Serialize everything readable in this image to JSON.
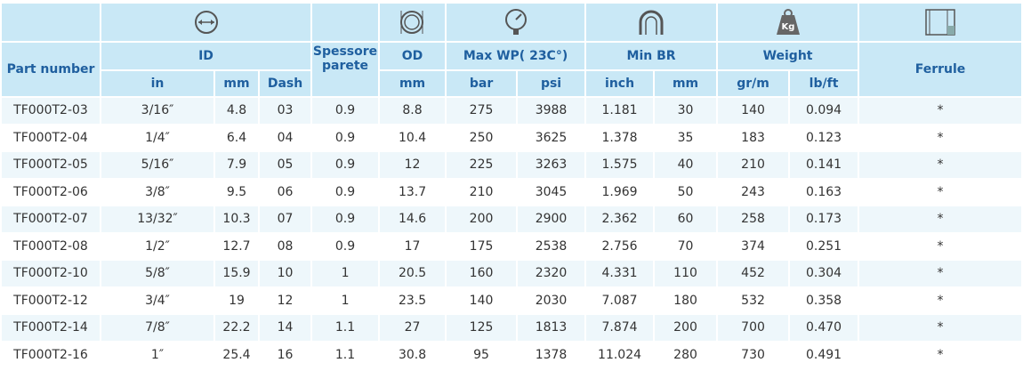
{
  "header": {
    "part_number": "Part number",
    "id": "ID",
    "spessore": "Spessore parete",
    "od": "OD",
    "max_wp": "Max WP( 23C°)",
    "min_br": "Min BR",
    "weight": "Weight",
    "ferrule": "Ferrule",
    "units": [
      "in",
      "mm",
      "Dash",
      "mm",
      "bar",
      "psi",
      "inch",
      "mm",
      "gr/m",
      "lb/ft"
    ]
  },
  "table": {
    "rows": [
      [
        "TF000T2-03",
        "3/16″",
        "4.8",
        "03",
        "0.9",
        "8.8",
        "275",
        "3988",
        "1.181",
        "30",
        "140",
        "0.094",
        "*"
      ],
      [
        "TF000T2-04",
        "1/4″",
        "6.4",
        "04",
        "0.9",
        "10.4",
        "250",
        "3625",
        "1.378",
        "35",
        "183",
        "0.123",
        "*"
      ],
      [
        "TF000T2-05",
        "5/16″",
        "7.9",
        "05",
        "0.9",
        "12",
        "225",
        "3263",
        "1.575",
        "40",
        "210",
        "0.141",
        "*"
      ],
      [
        "TF000T2-06",
        "3/8″",
        "9.5",
        "06",
        "0.9",
        "13.7",
        "210",
        "3045",
        "1.969",
        "50",
        "243",
        "0.163",
        "*"
      ],
      [
        "TF000T2-07",
        "13/32″",
        "10.3",
        "07",
        "0.9",
        "14.6",
        "200",
        "2900",
        "2.362",
        "60",
        "258",
        "0.173",
        "*"
      ],
      [
        "TF000T2-08",
        "1/2″",
        "12.7",
        "08",
        "0.9",
        "17",
        "175",
        "2538",
        "2.756",
        "70",
        "374",
        "0.251",
        "*"
      ],
      [
        "TF000T2-10",
        "5/8″",
        "15.9",
        "10",
        "1",
        "20.5",
        "160",
        "2320",
        "4.331",
        "110",
        "452",
        "0.304",
        "*"
      ],
      [
        "TF000T2-12",
        "3/4″",
        "19",
        "12",
        "1",
        "23.5",
        "140",
        "2030",
        "7.087",
        "180",
        "532",
        "0.358",
        "*"
      ],
      [
        "TF000T2-14",
        "7/8″",
        "22.2",
        "14",
        "1.1",
        "27",
        "125",
        "1813",
        "7.874",
        "200",
        "700",
        "0.470",
        "*"
      ],
      [
        "TF000T2-16",
        "1″",
        "25.4",
        "16",
        "1.1",
        "30.8",
        "95",
        "1378",
        "11.024",
        "280",
        "730",
        "0.491",
        "*"
      ]
    ]
  }
}
